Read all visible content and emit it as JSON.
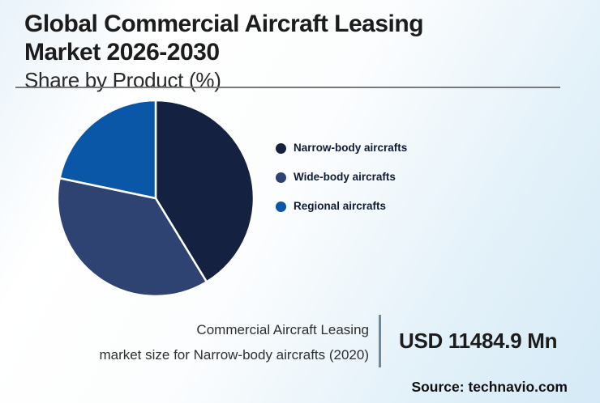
{
  "header": {
    "title_line1": "Global Commercial Aircraft Leasing",
    "title_line2": "Market 2026-2030",
    "subtitle": "Share by Product (%)"
  },
  "chart_data": {
    "type": "pie",
    "title": "Global Commercial Aircraft Leasing Market 2026-2030, Share by Product (%)",
    "labels": [
      "Narrow-body aircrafts",
      "Wide-body aircrafts",
      "Regional aircrafts"
    ],
    "values": [
      41.3,
      37.0,
      21.7
    ],
    "unit": "%",
    "colors": [
      "#142140",
      "#2e4372",
      "#0a57a8"
    ],
    "start_angle_deg": 0,
    "direction": "clockwise",
    "legend_position": "right",
    "slice_border_color": "#ffffff"
  },
  "legend": {
    "items": [
      {
        "label": "Narrow-body aircrafts",
        "color": "#142140"
      },
      {
        "label": "Wide-body aircrafts",
        "color": "#2e4372"
      },
      {
        "label": "Regional aircrafts",
        "color": "#0a57a8"
      }
    ]
  },
  "footer": {
    "caption_line1": "Commercial Aircraft Leasing",
    "caption_line2": "market size for Narrow-body aircrafts (2020)",
    "value": "USD 11484.9 Mn",
    "source": "Source: technavio.com"
  },
  "colors": {
    "background_top_left": "#e9f3fa",
    "background_white": "#ffffff",
    "background_bottom_right": "#d5eaf7",
    "horizontal_rule": "#77797c",
    "vertical_divider": "#6f88a1",
    "title_text": "#1c1c1c",
    "legend_text": "#0e1b35",
    "caption_text": "#2f2f2f"
  }
}
